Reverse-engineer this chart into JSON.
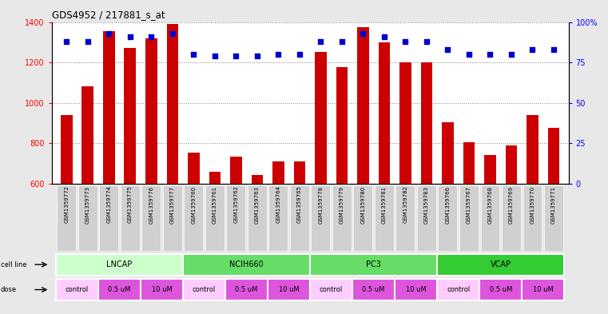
{
  "title": "GDS4952 / 217881_s_at",
  "samples": [
    "GSM1359772",
    "GSM1359773",
    "GSM1359774",
    "GSM1359775",
    "GSM1359776",
    "GSM1359777",
    "GSM1359760",
    "GSM1359761",
    "GSM1359762",
    "GSM1359763",
    "GSM1359764",
    "GSM1359765",
    "GSM1359778",
    "GSM1359779",
    "GSM1359780",
    "GSM1359781",
    "GSM1359782",
    "GSM1359783",
    "GSM1359766",
    "GSM1359767",
    "GSM1359768",
    "GSM1359769",
    "GSM1359770",
    "GSM1359771"
  ],
  "counts": [
    940,
    1080,
    1355,
    1270,
    1320,
    1390,
    755,
    660,
    735,
    645,
    710,
    710,
    1250,
    1175,
    1375,
    1300,
    1200,
    1200,
    905,
    805,
    740,
    790,
    940,
    875
  ],
  "percentile_ranks": [
    88,
    88,
    93,
    91,
    91,
    93,
    80,
    79,
    79,
    79,
    80,
    80,
    88,
    88,
    93,
    91,
    88,
    88,
    83,
    80,
    80,
    80,
    83,
    83
  ],
  "cell_lines": [
    {
      "name": "LNCAP",
      "start": 0,
      "end": 6,
      "color": "#ccffcc"
    },
    {
      "name": "NCIH660",
      "start": 6,
      "end": 12,
      "color": "#66dd66"
    },
    {
      "name": "PC3",
      "start": 12,
      "end": 18,
      "color": "#66dd66"
    },
    {
      "name": "VCAP",
      "start": 18,
      "end": 24,
      "color": "#33cc33"
    }
  ],
  "dose_groups": [
    {
      "label": "control",
      "start": 0,
      "end": 2,
      "color": "#ffccff"
    },
    {
      "label": "0.5 uM",
      "start": 2,
      "end": 4,
      "color": "#dd55dd"
    },
    {
      "label": "10 uM",
      "start": 4,
      "end": 6,
      "color": "#dd55dd"
    },
    {
      "label": "control",
      "start": 6,
      "end": 8,
      "color": "#ffccff"
    },
    {
      "label": "0.5 uM",
      "start": 8,
      "end": 10,
      "color": "#dd55dd"
    },
    {
      "label": "10 uM",
      "start": 10,
      "end": 12,
      "color": "#dd55dd"
    },
    {
      "label": "control",
      "start": 12,
      "end": 14,
      "color": "#ffccff"
    },
    {
      "label": "0.5 uM",
      "start": 14,
      "end": 16,
      "color": "#dd55dd"
    },
    {
      "label": "10 uM",
      "start": 16,
      "end": 18,
      "color": "#dd55dd"
    },
    {
      "label": "control",
      "start": 18,
      "end": 20,
      "color": "#ffccff"
    },
    {
      "label": "0.5 uM",
      "start": 20,
      "end": 22,
      "color": "#dd55dd"
    },
    {
      "label": "10 uM",
      "start": 22,
      "end": 24,
      "color": "#dd55dd"
    }
  ],
  "ylim_left": [
    600,
    1400
  ],
  "ylim_right": [
    0,
    100
  ],
  "yticks_left": [
    600,
    800,
    1000,
    1200,
    1400
  ],
  "yticks_right": [
    0,
    25,
    50,
    75,
    100
  ],
  "ytick_labels_right": [
    "0",
    "25",
    "50",
    "75",
    "100%"
  ],
  "bar_color": "#cc0000",
  "dot_color": "#0000cc",
  "bar_bottom": 600,
  "background_color": "#e8e8e8",
  "plot_bg_color": "#ffffff",
  "xtick_bg_color": "#d0d0d0"
}
